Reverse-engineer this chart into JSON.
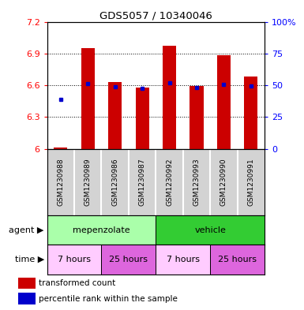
{
  "title": "GDS5057 / 10340046",
  "samples": [
    "GSM1230988",
    "GSM1230989",
    "GSM1230986",
    "GSM1230987",
    "GSM1230992",
    "GSM1230993",
    "GSM1230990",
    "GSM1230991"
  ],
  "bar_values": [
    6.01,
    6.95,
    6.63,
    6.575,
    6.97,
    6.59,
    6.885,
    6.68
  ],
  "bar_base": 6.0,
  "blue_values": [
    6.47,
    6.615,
    6.585,
    6.57,
    6.625,
    6.575,
    6.61,
    6.595
  ],
  "ylim": [
    6.0,
    7.2
  ],
  "yticks_left": [
    6.0,
    6.3,
    6.6,
    6.9,
    7.2
  ],
  "yticks_right": [
    0,
    25,
    50,
    75,
    100
  ],
  "bar_color": "#cc0000",
  "blue_color": "#0000cc",
  "agent_groups": [
    {
      "label": "mepenzolate",
      "start": 0,
      "end": 4,
      "color": "#aaffaa"
    },
    {
      "label": "vehicle",
      "start": 4,
      "end": 8,
      "color": "#33cc33"
    }
  ],
  "time_groups": [
    {
      "label": "7 hours",
      "start": 0,
      "end": 2,
      "color": "#ffccff"
    },
    {
      "label": "25 hours",
      "start": 2,
      "end": 4,
      "color": "#dd66dd"
    },
    {
      "label": "7 hours",
      "start": 4,
      "end": 6,
      "color": "#ffccff"
    },
    {
      "label": "25 hours",
      "start": 6,
      "end": 8,
      "color": "#dd66dd"
    }
  ],
  "agent_label": "agent",
  "time_label": "time",
  "legend_red": "transformed count",
  "legend_blue": "percentile rank within the sample",
  "bar_width": 0.5,
  "gray_bg": "#d3d3d3"
}
